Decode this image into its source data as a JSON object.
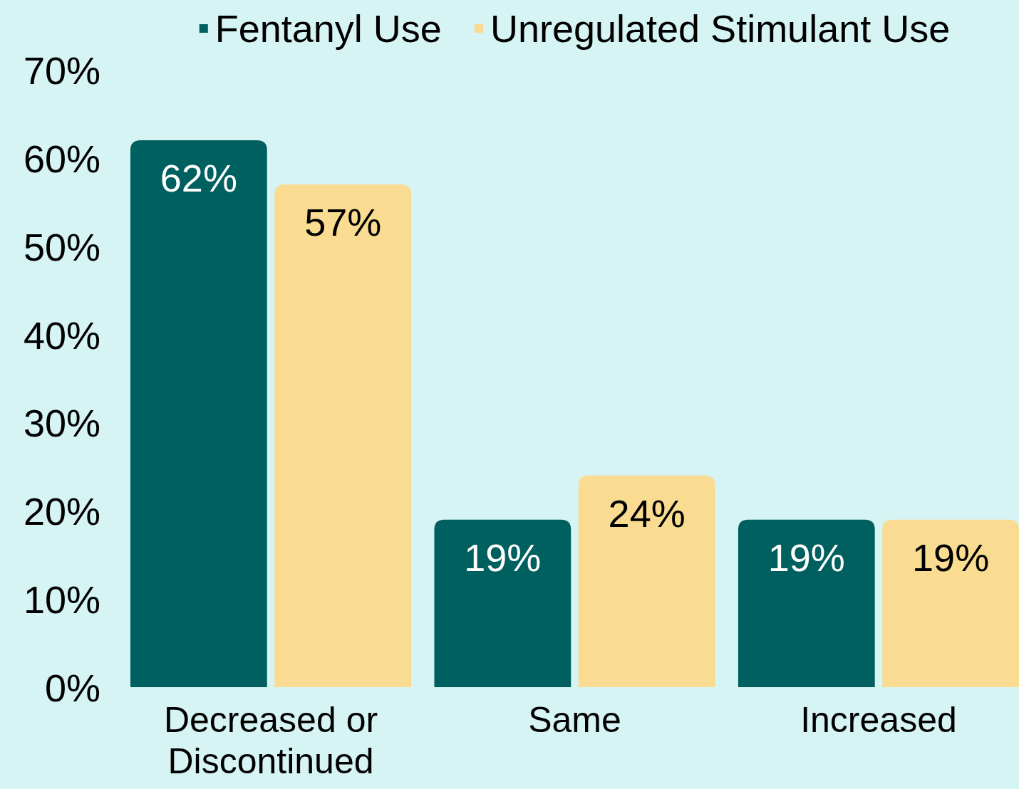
{
  "chart_data": {
    "type": "bar",
    "categories": [
      "Decreased or Discontinued",
      "Same",
      "Increased"
    ],
    "series": [
      {
        "name": "Fentanyl Use",
        "color": "#005f5f",
        "values": [
          62,
          19,
          19
        ],
        "value_labels": [
          "62%",
          "19%",
          "19%"
        ]
      },
      {
        "name": "Unregulated Stimulant Use",
        "color": "#f9db91",
        "values": [
          57,
          24,
          19
        ],
        "value_labels": [
          "57%",
          "24%",
          "19%"
        ]
      }
    ],
    "ylim": [
      0,
      70
    ],
    "yticks": [
      {
        "value": 0,
        "label": "0%"
      },
      {
        "value": 10,
        "label": "10%"
      },
      {
        "value": 20,
        "label": "20%"
      },
      {
        "value": 30,
        "label": "30%"
      },
      {
        "value": 40,
        "label": "40%"
      },
      {
        "value": 50,
        "label": "50%"
      },
      {
        "value": 60,
        "label": "60%"
      },
      {
        "value": 70,
        "label": "70%"
      }
    ],
    "grid": false,
    "legend": "top"
  }
}
